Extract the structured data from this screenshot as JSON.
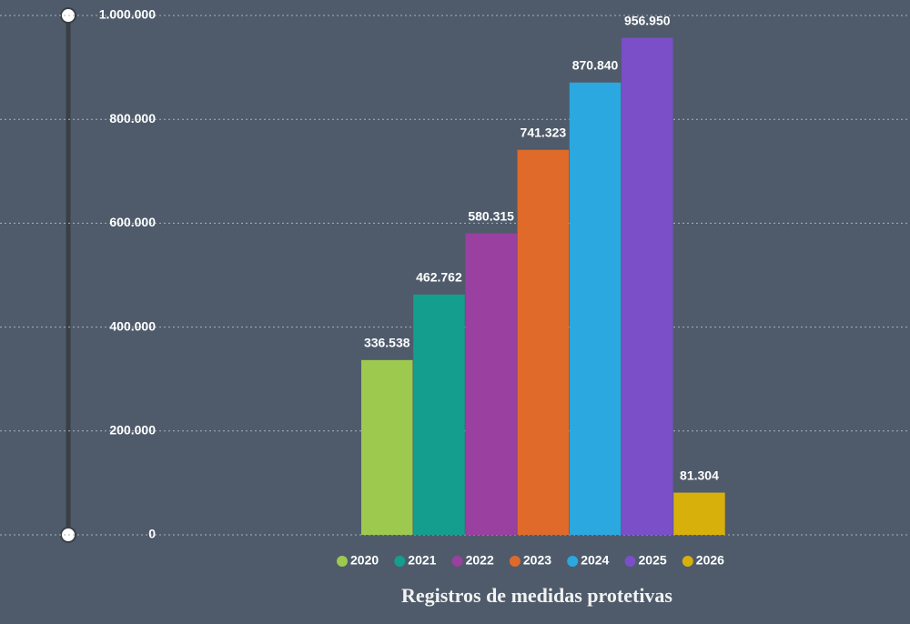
{
  "chart_data": {
    "type": "bar",
    "title": "Registros de medidas protetivas",
    "series": [
      {
        "name": "2020",
        "color": "#9dc94f",
        "values": [
          336538
        ],
        "value_labels": [
          "336.538"
        ]
      },
      {
        "name": "2021",
        "color": "#149e8e",
        "values": [
          462762
        ],
        "value_labels": [
          "462.762"
        ]
      },
      {
        "name": "2022",
        "color": "#9a40a0",
        "values": [
          580315
        ],
        "value_labels": [
          "580.315"
        ]
      },
      {
        "name": "2023",
        "color": "#df6a2a",
        "values": [
          741323
        ],
        "value_labels": [
          "741.323"
        ]
      },
      {
        "name": "2024",
        "color": "#2aa8df",
        "values": [
          870840
        ],
        "value_labels": [
          "870.840"
        ]
      },
      {
        "name": "2025",
        "color": "#7a4fc8",
        "values": [
          956950
        ],
        "value_labels": [
          "956.950"
        ]
      },
      {
        "name": "2026",
        "color": "#d8b00c",
        "values": [
          81304
        ],
        "value_labels": [
          "81.304"
        ]
      }
    ],
    "ylim": [
      0,
      1000000
    ],
    "yticks": [
      0,
      {
        "value": 200000,
        "label": "200.000"
      },
      {
        "value": 400000,
        "label": "400.000"
      },
      {
        "value": 600000,
        "label": "600.000"
      },
      {
        "value": 800000,
        "label": "800.000"
      },
      {
        "value": 1000000,
        "label": "1.000.000"
      }
    ],
    "grid": true,
    "legend": "bottom"
  }
}
